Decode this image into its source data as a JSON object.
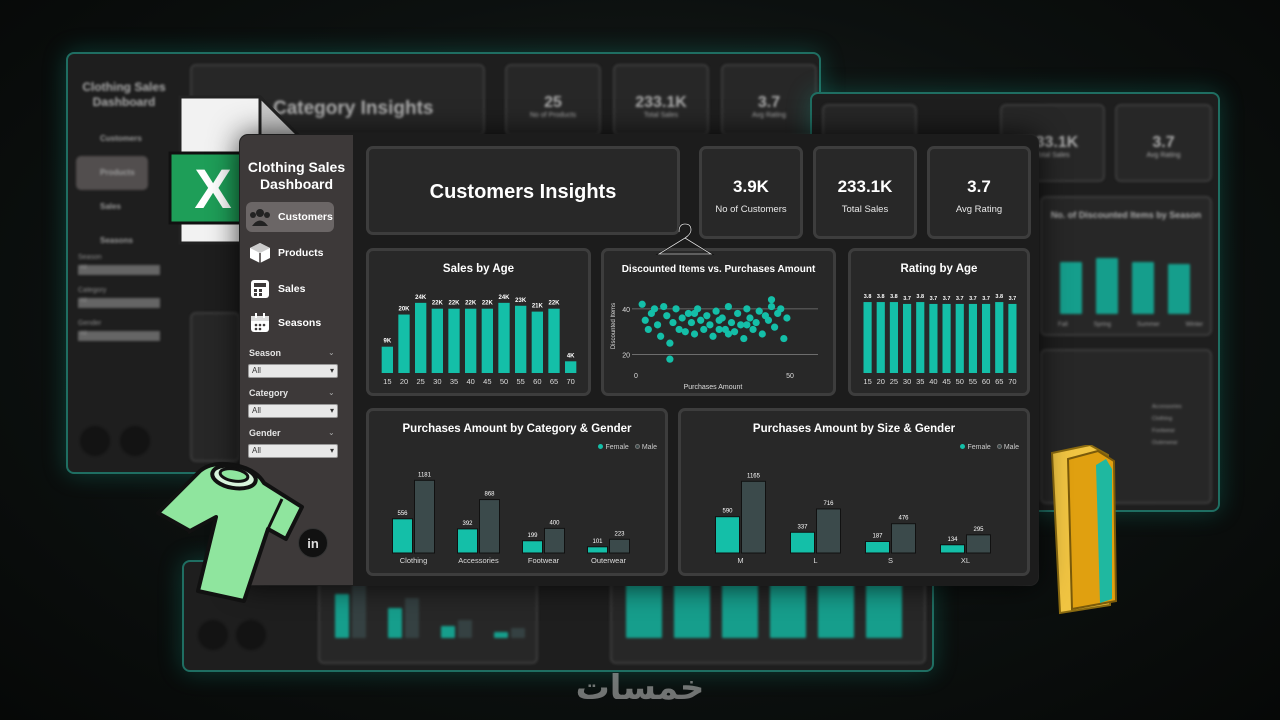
{
  "background_left": {
    "brand": "Clothing Sales Dashboard",
    "nav": [
      "Customers",
      "Products",
      "Sales",
      "Seasons"
    ],
    "filters": [
      {
        "label": "Season",
        "value": "All"
      },
      {
        "label": "Category",
        "value": "All"
      },
      {
        "label": "Gender",
        "value": "All"
      }
    ],
    "title": "& Category Insights",
    "kpis": [
      {
        "value": "25",
        "label": "No of Products"
      },
      {
        "value": "233.1K",
        "label": "Total Sales"
      },
      {
        "value": "3.7",
        "label": "Avg Rating"
      }
    ]
  },
  "background_right": {
    "kpis": [
      {
        "value": "233.1K",
        "label": "Total Sales"
      },
      {
        "value": "3.7",
        "label": "Avg Rating"
      }
    ],
    "chart_title": "No. of Discounted Items by Season",
    "season_labels": [
      "Fall",
      "Spring",
      "Summer",
      "Winter"
    ],
    "legend": [
      "Accessories",
      "Clothing",
      "Footwear",
      "Outerwear"
    ]
  },
  "sidebar": {
    "brand": "Clothing Sales Dashboard",
    "nav": [
      {
        "label": "Customers",
        "icon": "customers-icon",
        "active": true
      },
      {
        "label": "Products",
        "icon": "products-icon",
        "active": false
      },
      {
        "label": "Sales",
        "icon": "sales-icon",
        "active": false
      },
      {
        "label": "Seasons",
        "icon": "seasons-icon",
        "active": false
      }
    ],
    "filters": {
      "season": {
        "label": "Season",
        "value": "All"
      },
      "category": {
        "label": "Category",
        "value": "All"
      },
      "gender": {
        "label": "Gender",
        "value": "All"
      }
    },
    "social_icon": "linkedin-icon",
    "social_text": "in"
  },
  "header": {
    "title": "Customers Insights"
  },
  "kpis": [
    {
      "value": "3.9K",
      "label": "No of Customers"
    },
    {
      "value": "233.1K",
      "label": "Total Sales"
    },
    {
      "value": "3.7",
      "label": "Avg Rating"
    }
  ],
  "colors": {
    "teal": "#14bfa8",
    "dark_bar": "#3b4a4b",
    "card_bg": "#282828",
    "sidebar_bg": "#3d3939"
  },
  "chart_data": [
    {
      "type": "bar",
      "title": "Sales by Age",
      "categories": [
        "15",
        "20",
        "25",
        "30",
        "35",
        "40",
        "45",
        "50",
        "55",
        "60",
        "65",
        "70"
      ],
      "values": [
        9,
        20,
        24,
        22,
        22,
        22,
        22,
        24,
        23,
        21,
        22,
        4
      ],
      "data_labels": [
        "9K",
        "20K",
        "24K",
        "22K",
        "22K",
        "22K",
        "22K",
        "24K",
        "23K",
        "21K",
        "22K",
        "4K"
      ],
      "ylim": [
        0,
        26
      ]
    },
    {
      "type": "scatter",
      "title": "Discounted Items vs. Purchases Amount",
      "xlabel": "Purchases Amount",
      "ylabel": "Discounted Items",
      "xticks": [
        "0",
        "50"
      ],
      "yticks": [
        "20",
        "40"
      ],
      "xlim": [
        0,
        50
      ],
      "ylim": [
        15,
        50
      ],
      "points": [
        [
          2,
          42
        ],
        [
          3,
          35
        ],
        [
          5,
          38
        ],
        [
          6,
          40
        ],
        [
          7,
          33
        ],
        [
          8,
          28
        ],
        [
          9,
          41
        ],
        [
          10,
          37
        ],
        [
          11,
          18
        ],
        [
          12,
          34
        ],
        [
          13,
          40
        ],
        [
          14,
          31
        ],
        [
          15,
          36
        ],
        [
          16,
          30
        ],
        [
          17,
          38
        ],
        [
          18,
          34
        ],
        [
          19,
          29
        ],
        [
          20,
          40
        ],
        [
          21,
          35
        ],
        [
          22,
          31
        ],
        [
          23,
          37
        ],
        [
          24,
          33
        ],
        [
          25,
          28
        ],
        [
          26,
          39
        ],
        [
          27,
          35
        ],
        [
          28,
          36
        ],
        [
          29,
          31
        ],
        [
          30,
          41
        ],
        [
          31,
          34
        ],
        [
          32,
          30
        ],
        [
          33,
          38
        ],
        [
          34,
          33
        ],
        [
          35,
          27
        ],
        [
          36,
          40
        ],
        [
          37,
          36
        ],
        [
          38,
          31
        ],
        [
          39,
          34
        ],
        [
          40,
          39
        ],
        [
          41,
          29
        ],
        [
          42,
          37
        ],
        [
          43,
          35
        ],
        [
          44,
          44
        ],
        [
          45,
          32
        ],
        [
          46,
          38
        ],
        [
          47,
          40
        ],
        [
          48,
          27
        ],
        [
          49,
          36
        ],
        [
          4,
          31
        ],
        [
          19,
          38
        ],
        [
          27,
          31
        ],
        [
          36,
          33
        ],
        [
          44,
          41
        ],
        [
          11,
          25
        ],
        [
          30,
          29
        ]
      ]
    },
    {
      "type": "bar",
      "title": "Rating by Age",
      "categories": [
        "15",
        "20",
        "25",
        "30",
        "35",
        "40",
        "45",
        "50",
        "55",
        "60",
        "65",
        "70"
      ],
      "values": [
        3.8,
        3.8,
        3.8,
        3.7,
        3.8,
        3.7,
        3.7,
        3.7,
        3.7,
        3.7,
        3.8,
        3.7
      ],
      "ylim": [
        0,
        4.5
      ]
    },
    {
      "type": "bar",
      "title": "Purchases Amount by Category & Gender",
      "categories": [
        "Clothing",
        "Accessories",
        "Footwear",
        "Outerwear"
      ],
      "series": [
        {
          "name": "Female",
          "values": [
            556,
            392,
            199,
            101
          ]
        },
        {
          "name": "Male",
          "values": [
            1181,
            868,
            400,
            223
          ]
        }
      ],
      "ylim": [
        0,
        1300
      ]
    },
    {
      "type": "bar",
      "title": "Purchases Amount by Size & Gender",
      "categories": [
        "M",
        "L",
        "S",
        "XL"
      ],
      "series": [
        {
          "name": "Female",
          "values": [
            590,
            337,
            187,
            134
          ]
        },
        {
          "name": "Male",
          "values": [
            1165,
            716,
            476,
            295
          ]
        }
      ],
      "ylim": [
        0,
        1300
      ]
    }
  ],
  "footer": {
    "logo_text": "خمسات"
  }
}
